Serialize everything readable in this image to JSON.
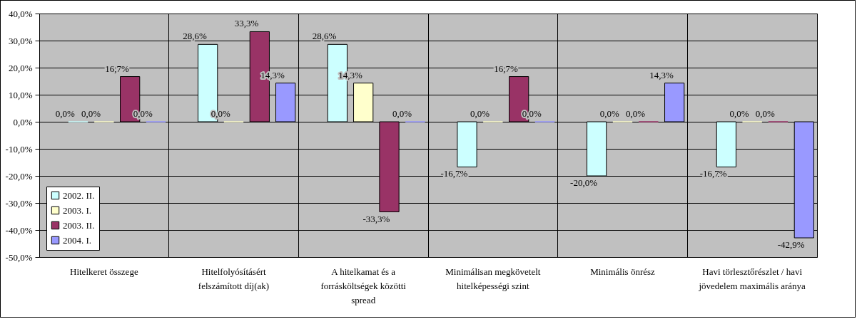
{
  "chart_data": {
    "type": "bar",
    "categories": [
      "Hitelkeret összege",
      "Hitelfolyósításért felszámított díj(ak)",
      "A hitelkamat és a forrásköltségek közötti spread",
      "Minimálisan megkövetelt hitelképességi szint",
      "Minimális önrész",
      "Havi törlesztőrészlet / havi jövedelem maximális aránya"
    ],
    "series": [
      {
        "name": "2002. II.",
        "color": "#ccffff",
        "values": [
          0,
          28.6,
          28.6,
          -16.7,
          -20.0,
          -16.7
        ],
        "value_labels": [
          "0,0%",
          "28,6%",
          "28,6%",
          "-16,7%",
          "-20,0%",
          "-16,7%"
        ]
      },
      {
        "name": "2003. I.",
        "color": "#ffffcc",
        "values": [
          0,
          0,
          14.3,
          0,
          0,
          0
        ],
        "value_labels": [
          "0,0%",
          "0,0%",
          "14,3%",
          "0,0%",
          "0,0%",
          "0,0%"
        ]
      },
      {
        "name": "2003. II.",
        "color": "#993366",
        "values": [
          16.7,
          33.3,
          -33.3,
          16.7,
          0,
          0
        ],
        "value_labels": [
          "16,7%",
          "33,3%",
          "-33,3%",
          "16,7%",
          "0,0%",
          "0,0%"
        ]
      },
      {
        "name": "2004. I.",
        "color": "#9999ff",
        "values": [
          0,
          14.3,
          0,
          0,
          14.3,
          -42.9
        ],
        "value_labels": [
          "0,0%",
          "14,3%",
          "0,0%",
          "0,0%",
          "14,3%",
          "-42,9%"
        ]
      }
    ],
    "ylim": [
      -50,
      40
    ],
    "yticks": [
      {
        "value": -50,
        "label": "-50,0%"
      },
      {
        "value": -40,
        "label": "-40,0%"
      },
      {
        "value": -30,
        "label": "-30,0%"
      },
      {
        "value": -20,
        "label": "-20,0%"
      },
      {
        "value": -10,
        "label": "-10,0%"
      },
      {
        "value": 0,
        "label": "0,0%"
      },
      {
        "value": 10,
        "label": "10,0%"
      },
      {
        "value": 20,
        "label": "20,0%"
      },
      {
        "value": 30,
        "label": "30,0%"
      },
      {
        "value": 40,
        "label": "40,0%"
      }
    ],
    "grid": true,
    "legend": "bottom left"
  }
}
